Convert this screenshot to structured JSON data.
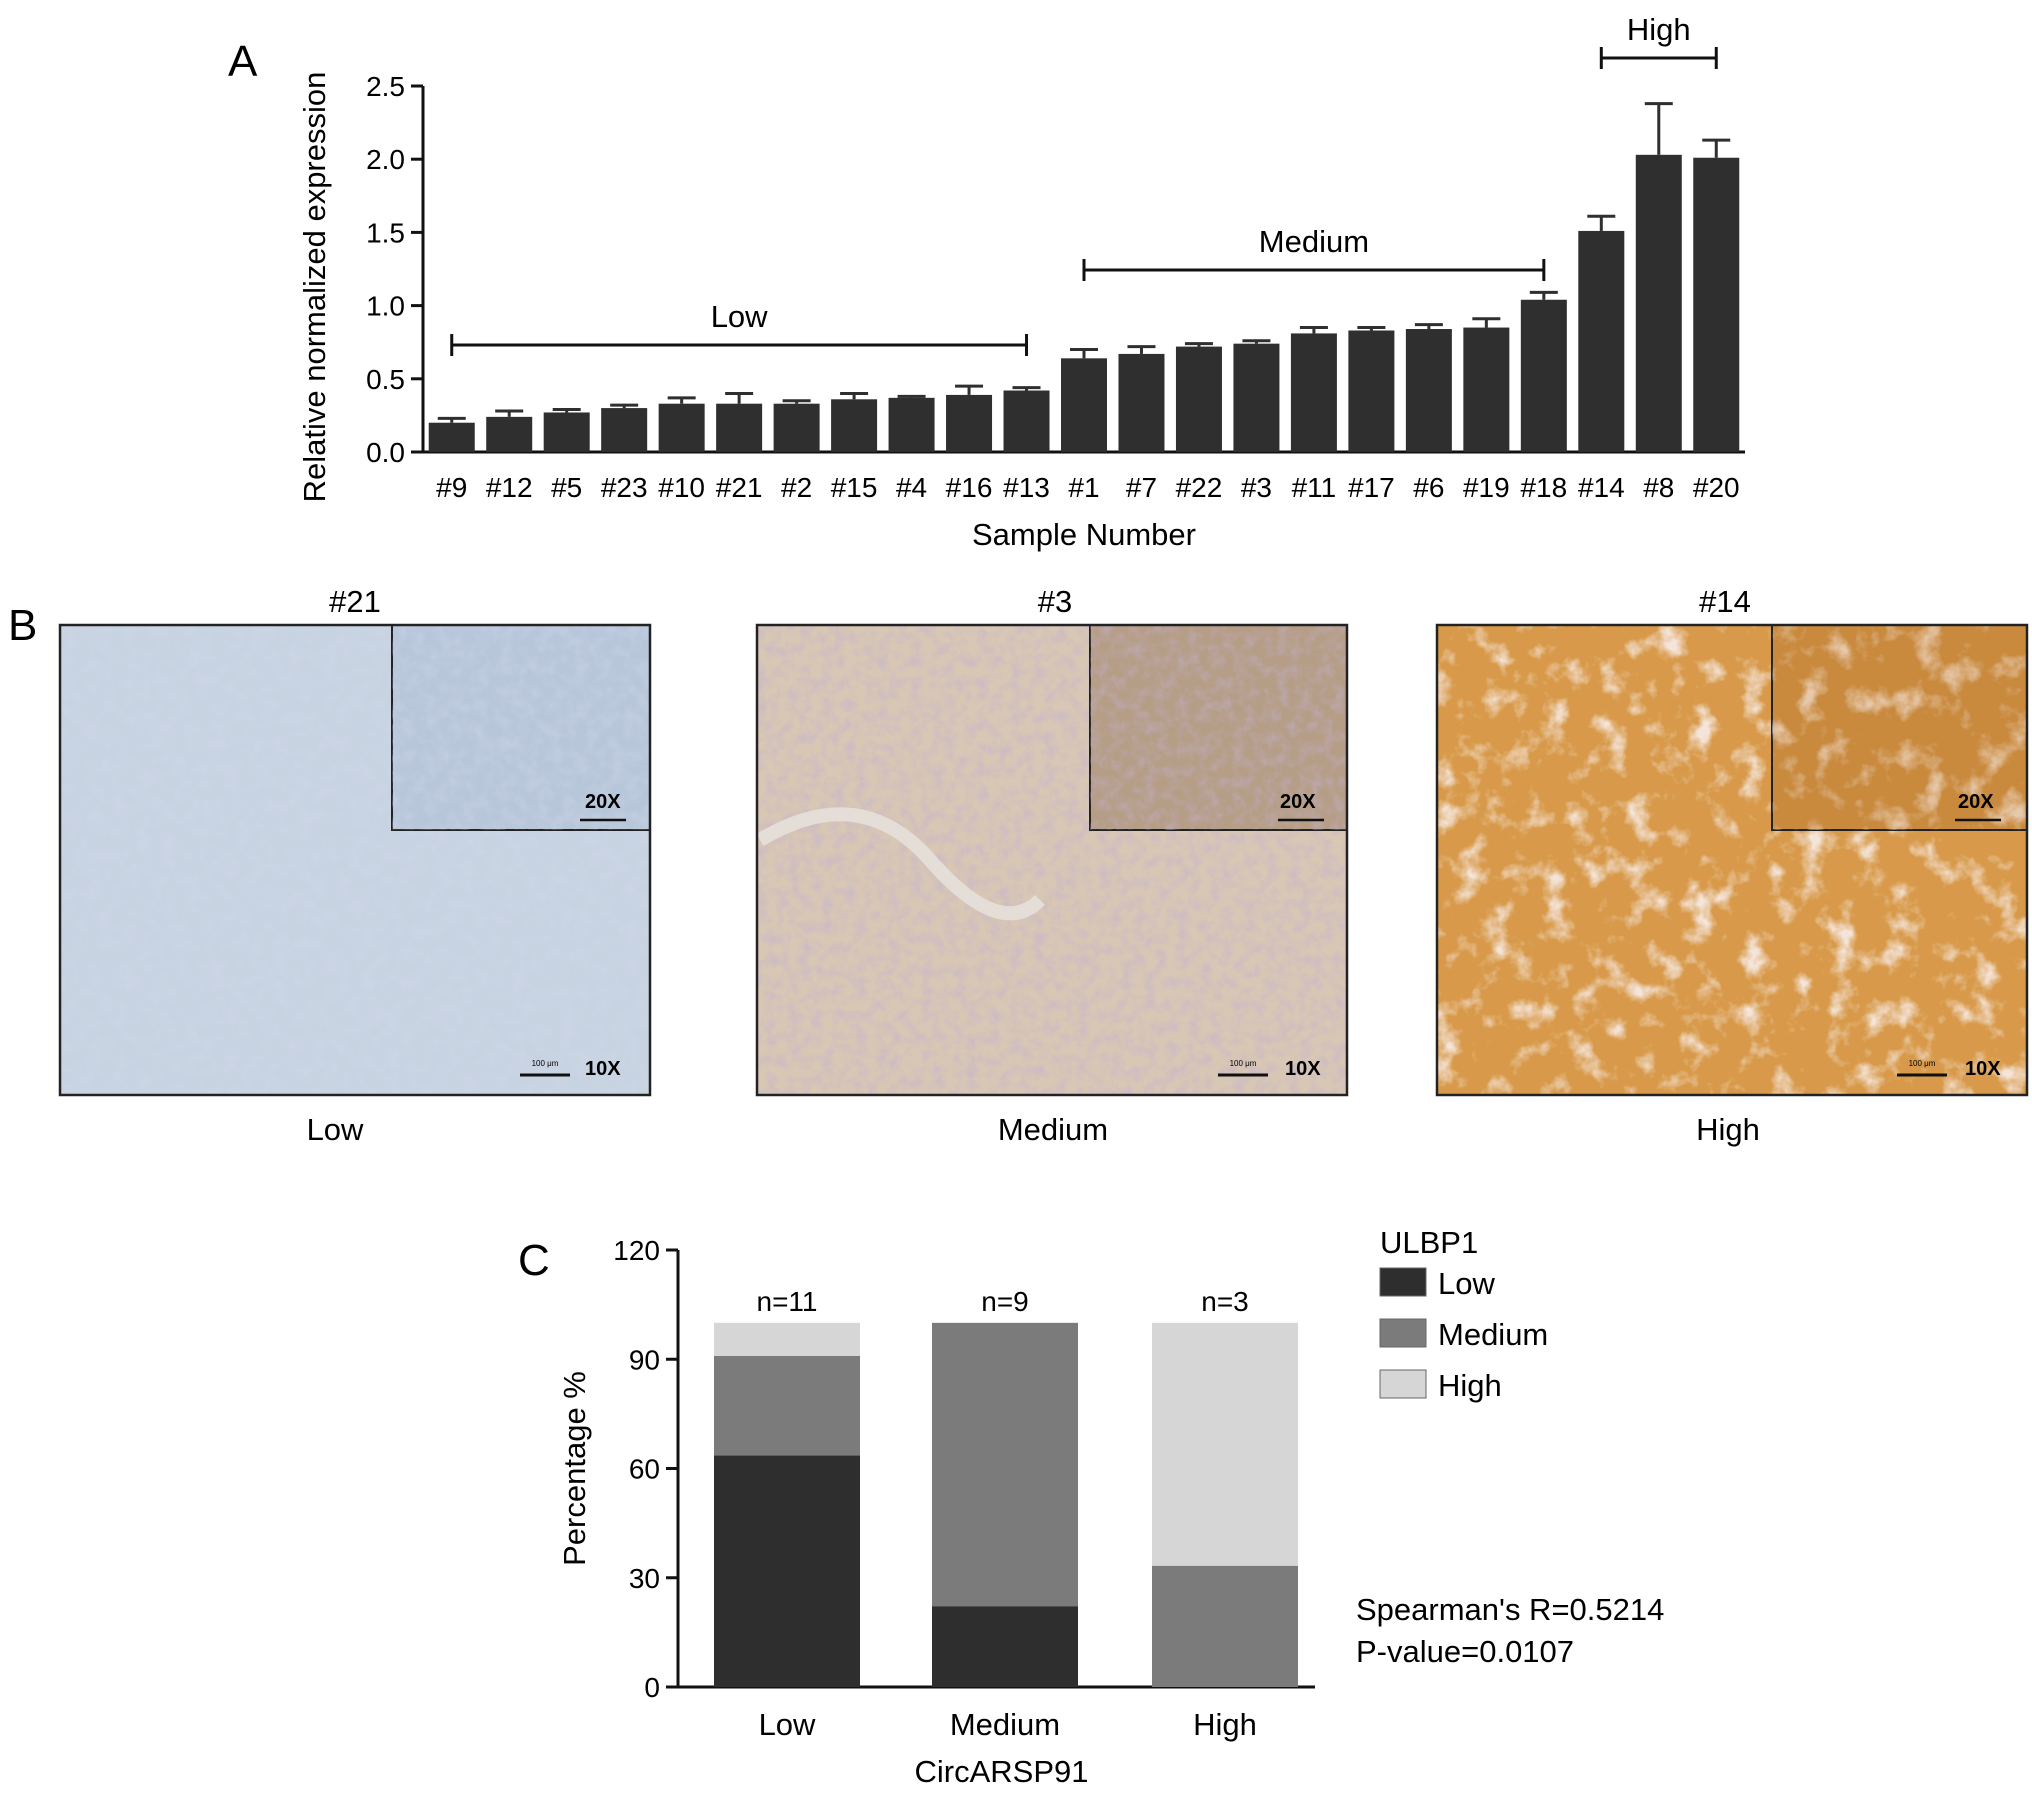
{
  "panels": {
    "a_letter": "A",
    "b_letter": "B",
    "c_letter": "C"
  },
  "colors": {
    "bar": "#2f2f2f",
    "stack_low": "#2e2e2e",
    "stack_medium": "#7b7b7b",
    "stack_high": "#d6d6d6"
  },
  "chart_data": [
    {
      "type": "bar",
      "ylabel": "Relative normalized expression",
      "xlabel": "Sample Number",
      "ylim": [
        0,
        2.5
      ],
      "yticks": [
        "0.0",
        "0.5",
        "1.0",
        "1.5",
        "2.0",
        "2.5"
      ],
      "categories": [
        "#9",
        "#12",
        "#5",
        "#23",
        "#10",
        "#21",
        "#2",
        "#15",
        "#4",
        "#16",
        "#13",
        "#1",
        "#7",
        "#22",
        "#3",
        "#11",
        "#17",
        "#6",
        "#19",
        "#18",
        "#14",
        "#8",
        "#20"
      ],
      "values": [
        0.2,
        0.24,
        0.27,
        0.3,
        0.33,
        0.33,
        0.33,
        0.36,
        0.37,
        0.39,
        0.42,
        0.64,
        0.67,
        0.72,
        0.74,
        0.81,
        0.83,
        0.84,
        0.85,
        1.04,
        1.51,
        2.03,
        2.01
      ],
      "errors": [
        0.03,
        0.04,
        0.02,
        0.02,
        0.04,
        0.07,
        0.02,
        0.04,
        0.01,
        0.06,
        0.02,
        0.06,
        0.05,
        0.02,
        0.02,
        0.04,
        0.02,
        0.03,
        0.06,
        0.05,
        0.1,
        0.35,
        0.12
      ],
      "groups": [
        {
          "label": "Low",
          "from": 0,
          "to": 10
        },
        {
          "label": "Medium",
          "from": 11,
          "to": 19
        },
        {
          "label": "High",
          "from": 20,
          "to": 22
        }
      ]
    },
    {
      "type": "bar",
      "stacked": true,
      "xlabel": "CircARSP91",
      "ylabel": "Percentage %",
      "ylim": [
        0,
        120
      ],
      "yticks": [
        "0",
        "30",
        "60",
        "90",
        "120"
      ],
      "categories": [
        "Low",
        "Medium",
        "High"
      ],
      "n_labels": [
        "n=11",
        "n=9",
        "n=3"
      ],
      "legend_title": "ULBP1",
      "series": [
        {
          "name": "Low",
          "values": [
            63.6,
            22.2,
            0
          ]
        },
        {
          "name": "Medium",
          "values": [
            27.3,
            77.8,
            33.3
          ]
        },
        {
          "name": "High",
          "values": [
            9.1,
            0,
            66.7
          ]
        }
      ],
      "annotations": [
        "Spearman's R=0.5214",
        "P-value=0.0107"
      ]
    }
  ],
  "images": [
    {
      "title": "#21",
      "caption": "Low",
      "inset_mag": "20X",
      "main_mag": "10X",
      "scale": "100 μm"
    },
    {
      "title": "#3",
      "caption": "Medium",
      "inset_mag": "20X",
      "main_mag": "10X",
      "scale": "100 μm"
    },
    {
      "title": "#14",
      "caption": "High",
      "inset_mag": "20X",
      "main_mag": "10X",
      "scale": "100 μm"
    }
  ]
}
